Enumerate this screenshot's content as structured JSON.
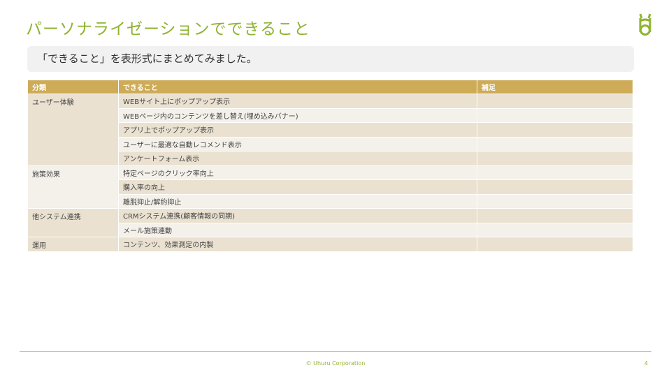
{
  "title": "パーソナライゼーションでできること",
  "subtitle": "「できること」を表形式にまとめてみました。",
  "table": {
    "headers": [
      "分類",
      "できること",
      "補足"
    ],
    "groups": [
      {
        "category": "ユーザー体験",
        "items": [
          "WEBサイト上にポップアップ表示",
          "WEBページ内のコンテンツを差し替え(埋め込みバナー)",
          "アプリ上でポップアップ表示",
          "ユーザーに最適な自動レコメンド表示",
          "アンケートフォーム表示"
        ]
      },
      {
        "category": "施策効果",
        "items": [
          "特定ページのクリック率向上",
          "購入率の向上",
          "離脱抑止/解約抑止"
        ]
      },
      {
        "category": "他システム連携",
        "items": [
          "CRMシステム連携(顧客情報の同期)",
          "メール施策連動"
        ]
      },
      {
        "category": "運用",
        "items": [
          "コンテンツ、効果測定の内製"
        ]
      }
    ]
  },
  "footer": {
    "copyright": "© Uhuru Corporation",
    "page": "4"
  },
  "colors": {
    "accent": "#8fb330",
    "header": "#cdab57",
    "row_dark": "#eae1d0",
    "row_light": "#f4f0ea"
  },
  "logo": "uhuru-logo-icon"
}
